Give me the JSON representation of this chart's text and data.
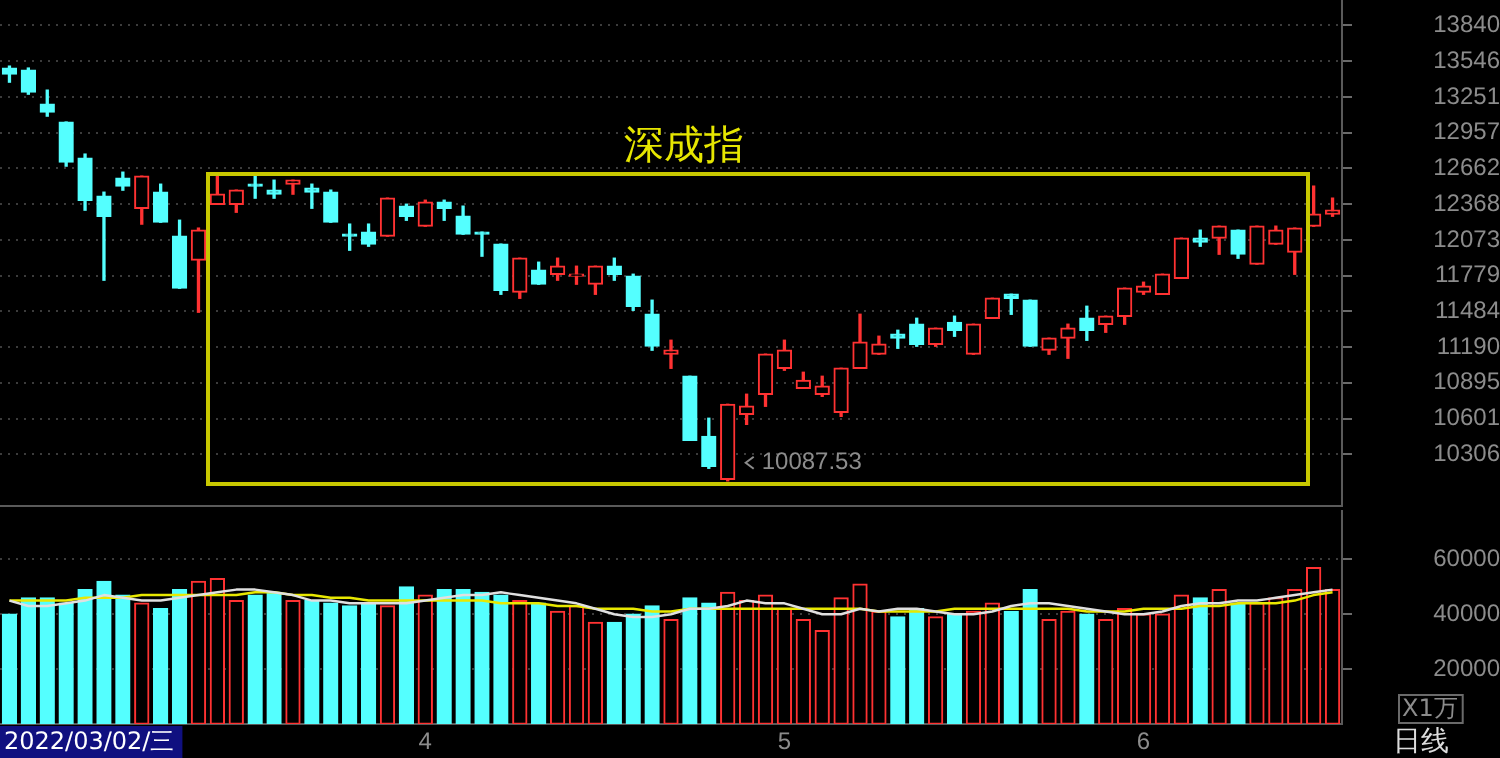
{
  "chart_data": [
    {
      "type": "candlestick",
      "title": "深成指",
      "categories": [
        null,
        null,
        null,
        null,
        null,
        null,
        null,
        null,
        null,
        null,
        null,
        null,
        null,
        null,
        null,
        null,
        null,
        null,
        null,
        null,
        null,
        null,
        "4",
        null,
        null,
        null,
        null,
        null,
        null,
        null,
        null,
        null,
        null,
        null,
        null,
        null,
        null,
        null,
        null,
        null,
        null,
        "5",
        null,
        null,
        null,
        null,
        null,
        null,
        null,
        null,
        null,
        null,
        null,
        null,
        null,
        null,
        null,
        null,
        null,
        null,
        "6",
        null,
        null,
        null,
        null,
        null,
        null,
        null,
        null,
        null,
        null
      ],
      "ohlc": [
        [
          13489,
          13505,
          13373,
          13439
        ],
        [
          13472,
          13489,
          13274,
          13291
        ],
        [
          13192,
          13307,
          13093,
          13126
        ],
        [
          13044,
          13044,
          12681,
          12714
        ],
        [
          12747,
          12780,
          12318,
          12400
        ],
        [
          12433,
          12466,
          11741,
          12268
        ],
        [
          12582,
          12631,
          12483,
          12516
        ],
        [
          12334,
          12598,
          12203,
          12598
        ],
        [
          12466,
          12532,
          12219,
          12219
        ],
        [
          12104,
          12235,
          11675,
          11675
        ],
        [
          11906,
          12170,
          11477,
          12153
        ],
        [
          12367,
          12615,
          12367,
          12450
        ],
        [
          12367,
          12483,
          12301,
          12483
        ],
        [
          12532,
          12615,
          12417,
          12516
        ],
        [
          12483,
          12565,
          12417,
          12450
        ],
        [
          12532,
          12565,
          12450,
          12565
        ],
        [
          12499,
          12532,
          12334,
          12466
        ],
        [
          12466,
          12483,
          12219,
          12219
        ],
        [
          12120,
          12203,
          11988,
          12104
        ],
        [
          12137,
          12203,
          12021,
          12038
        ],
        [
          12104,
          12417,
          12104,
          12417
        ],
        [
          12351,
          12367,
          12235,
          12268
        ],
        [
          12186,
          12400,
          12186,
          12384
        ],
        [
          12384,
          12400,
          12235,
          12334
        ],
        [
          12268,
          12351,
          12120,
          12120
        ],
        [
          12137,
          12137,
          11939,
          12120
        ],
        [
          12038,
          12038,
          11625,
          11658
        ],
        [
          11642,
          11922,
          11592,
          11922
        ],
        [
          11823,
          11889,
          11708,
          11708
        ],
        [
          11790,
          11922,
          11741,
          11856
        ],
        [
          11774,
          11856,
          11708,
          11790
        ],
        [
          11708,
          11856,
          11625,
          11856
        ],
        [
          11856,
          11922,
          11741,
          11790
        ],
        [
          11774,
          11790,
          11493,
          11526
        ],
        [
          11460,
          11576,
          11164,
          11197
        ],
        [
          11131,
          11246,
          11015,
          11164
        ],
        [
          10949,
          10949,
          10421,
          10421
        ],
        [
          10454,
          10603,
          10191,
          10207
        ],
        [
          10100,
          10718,
          10087.53,
          10718
        ],
        [
          10635,
          10801,
          10553,
          10702
        ],
        [
          10801,
          11131,
          10702,
          11131
        ],
        [
          11015,
          11246,
          10999,
          11164
        ],
        [
          10850,
          10982,
          10850,
          10916
        ],
        [
          10801,
          10949,
          10784,
          10867
        ],
        [
          10652,
          11015,
          10619,
          11015
        ],
        [
          11015,
          11460,
          11015,
          11230
        ],
        [
          11131,
          11279,
          11131,
          11213
        ],
        [
          11296,
          11328,
          11180,
          11263
        ],
        [
          11378,
          11427,
          11197,
          11213
        ],
        [
          11213,
          11345,
          11197,
          11345
        ],
        [
          11394,
          11444,
          11279,
          11328
        ],
        [
          11131,
          11378,
          11131,
          11378
        ],
        [
          11427,
          11592,
          11427,
          11592
        ],
        [
          11625,
          11625,
          11460,
          11592
        ],
        [
          11576,
          11576,
          11197,
          11197
        ],
        [
          11164,
          11263,
          11131,
          11263
        ],
        [
          11263,
          11378,
          11098,
          11345
        ],
        [
          11427,
          11526,
          11246,
          11328
        ],
        [
          11378,
          11444,
          11312,
          11444
        ],
        [
          11444,
          11675,
          11378,
          11675
        ],
        [
          11642,
          11724,
          11625,
          11691
        ],
        [
          11625,
          11790,
          11625,
          11790
        ],
        [
          11757,
          12087,
          11757,
          12087
        ],
        [
          12087,
          12153,
          12021,
          12054
        ],
        [
          12087,
          12186,
          11955,
          12186
        ],
        [
          12153,
          12153,
          11922,
          11955
        ],
        [
          11873,
          12186,
          11873,
          12186
        ],
        [
          12038,
          12186,
          12038,
          12153
        ],
        [
          11972,
          12170,
          11790,
          12170
        ],
        [
          12186,
          12516,
          12186,
          12285
        ],
        [
          12285,
          12417,
          12268,
          12318
        ]
      ],
      "colors": [
        "#54ffff",
        "#54ffff",
        "#54ffff",
        "#54ffff",
        "#54ffff",
        "#54ffff",
        "#54ffff",
        "#ff3232",
        "#54ffff",
        "#54ffff",
        "#ff3232",
        "#ff3232",
        "#ff3232",
        "#54ffff",
        "#54ffff",
        "#ff3232",
        "#54ffff",
        "#54ffff",
        "#54ffff",
        "#54ffff",
        "#ff3232",
        "#54ffff",
        "#ff3232",
        "#54ffff",
        "#54ffff",
        "#54ffff",
        "#54ffff",
        "#ff3232",
        "#54ffff",
        "#ff3232",
        "#ff3232",
        "#ff3232",
        "#54ffff",
        "#54ffff",
        "#54ffff",
        "#ff3232",
        "#54ffff",
        "#54ffff",
        "#ff3232",
        "#ff3232",
        "#ff3232",
        "#ff3232",
        "#ff3232",
        "#ff3232",
        "#ff3232",
        "#ff3232",
        "#ff3232",
        "#54ffff",
        "#54ffff",
        "#ff3232",
        "#54ffff",
        "#ff3232",
        "#ff3232",
        "#54ffff",
        "#54ffff",
        "#ff3232",
        "#ff3232",
        "#54ffff",
        "#ff3232",
        "#ff3232",
        "#ff3232",
        "#ff3232",
        "#ff3232",
        "#54ffff",
        "#ff3232",
        "#54ffff",
        "#ff3232",
        "#ff3232",
        "#ff3232",
        "#ff3232",
        "#ff3232"
      ],
      "ylim": [
        9880,
        14050
      ],
      "yticks": [
        10306,
        10601,
        10895,
        11190,
        11484,
        11779,
        12073,
        12368,
        12662,
        12957,
        13251,
        13546,
        13840
      ],
      "grid": "y",
      "tick_labels": "y",
      "annotations": [
        "10087.53"
      ]
    },
    {
      "type": "bar",
      "ylabel": "X1万",
      "categories": [
        null,
        null,
        null,
        null,
        null,
        null,
        null,
        null,
        null,
        null,
        null,
        null,
        null,
        null,
        null,
        null,
        null,
        null,
        null,
        null,
        null,
        null,
        "4",
        null,
        null,
        null,
        null,
        null,
        null,
        null,
        null,
        null,
        null,
        null,
        null,
        null,
        null,
        null,
        null,
        null,
        null,
        "5",
        null,
        null,
        null,
        null,
        null,
        null,
        null,
        null,
        null,
        null,
        null,
        null,
        null,
        null,
        null,
        null,
        null,
        null,
        "6",
        null,
        null,
        null,
        null,
        null,
        null,
        null,
        null,
        null,
        null
      ],
      "series": [
        {
          "values": [
            40000,
            46000,
            46000,
            44000,
            49000,
            52000,
            47000,
            44000,
            42000,
            49000,
            52000,
            53000,
            45000,
            47000,
            48000,
            45000,
            45000,
            44000,
            43000,
            44000,
            43000,
            50000,
            47000,
            49000,
            49000,
            48000,
            47000,
            45000,
            44000,
            41000,
            43000,
            37000,
            37000,
            40000,
            43000,
            38000,
            46000,
            44000,
            48000,
            45000,
            47000,
            42000,
            38000,
            34000,
            46000,
            51000,
            41000,
            39000,
            42000,
            39000,
            40000,
            41000,
            44000,
            41000,
            49000,
            38000,
            41000,
            40000,
            38000,
            42000,
            40000,
            40000,
            47000,
            46000,
            49000,
            44000,
            44000,
            46000,
            49000,
            57000,
            49000
          ],
          "colors": [
            "#54ffff",
            "#54ffff",
            "#54ffff",
            "#54ffff",
            "#54ffff",
            "#54ffff",
            "#54ffff",
            "#ff3232",
            "#54ffff",
            "#54ffff",
            "#ff3232",
            "#ff3232",
            "#ff3232",
            "#54ffff",
            "#54ffff",
            "#ff3232",
            "#54ffff",
            "#54ffff",
            "#54ffff",
            "#54ffff",
            "#ff3232",
            "#54ffff",
            "#ff3232",
            "#54ffff",
            "#54ffff",
            "#54ffff",
            "#54ffff",
            "#ff3232",
            "#54ffff",
            "#ff3232",
            "#ff3232",
            "#ff3232",
            "#54ffff",
            "#54ffff",
            "#54ffff",
            "#ff3232",
            "#54ffff",
            "#54ffff",
            "#ff3232",
            "#ff3232",
            "#ff3232",
            "#ff3232",
            "#ff3232",
            "#ff3232",
            "#ff3232",
            "#ff3232",
            "#ff3232",
            "#54ffff",
            "#54ffff",
            "#ff3232",
            "#54ffff",
            "#ff3232",
            "#ff3232",
            "#54ffff",
            "#54ffff",
            "#ff3232",
            "#ff3232",
            "#54ffff",
            "#ff3232",
            "#ff3232",
            "#ff3232",
            "#ff3232",
            "#ff3232",
            "#54ffff",
            "#ff3232",
            "#54ffff",
            "#ff3232",
            "#ff3232",
            "#ff3232",
            "#ff3232",
            "#ff3232"
          ]
        },
        {
          "type": "line",
          "color": "#e0e0e0",
          "values": [
            45000,
            43000,
            43000,
            44000,
            45000,
            47000,
            46000,
            45000,
            45000,
            46000,
            47000,
            48000,
            49000,
            49000,
            48000,
            47000,
            45000,
            45000,
            44000,
            44000,
            44000,
            44000,
            45000,
            46000,
            47000,
            47000,
            48000,
            47000,
            46000,
            45000,
            44000,
            42000,
            40000,
            39000,
            39000,
            40000,
            42000,
            42000,
            43000,
            45000,
            44000,
            44000,
            42000,
            40000,
            40000,
            42000,
            41000,
            42000,
            42000,
            41000,
            40000,
            40000,
            41000,
            43000,
            44000,
            44000,
            43000,
            42000,
            41000,
            40000,
            40000,
            41000,
            43000,
            44000,
            44000,
            45000,
            45000,
            46000,
            47000,
            48000,
            49000
          ]
        },
        {
          "type": "line",
          "color": "#e8e800",
          "values": [
            45000,
            45000,
            45000,
            45000,
            46000,
            46000,
            46000,
            47000,
            47000,
            47000,
            47000,
            47000,
            47000,
            48000,
            48000,
            47000,
            47000,
            46000,
            46000,
            45000,
            45000,
            45000,
            45000,
            45000,
            45000,
            45000,
            44000,
            44000,
            44000,
            43000,
            43000,
            42000,
            42000,
            42000,
            41000,
            41000,
            42000,
            42000,
            42000,
            42000,
            42000,
            42000,
            42000,
            42000,
            42000,
            42000,
            41000,
            41000,
            41000,
            41000,
            42000,
            42000,
            42000,
            42000,
            42000,
            42000,
            42000,
            41000,
            41000,
            41000,
            42000,
            42000,
            42000,
            43000,
            43000,
            44000,
            44000,
            44000,
            45000,
            47000,
            48000
          ]
        }
      ],
      "ylim": [
        0,
        78000
      ],
      "yticks": [
        20000,
        40000,
        60000
      ],
      "grid": "y",
      "annotations": [
        "2022/03/02/三",
        "日线"
      ]
    }
  ]
}
